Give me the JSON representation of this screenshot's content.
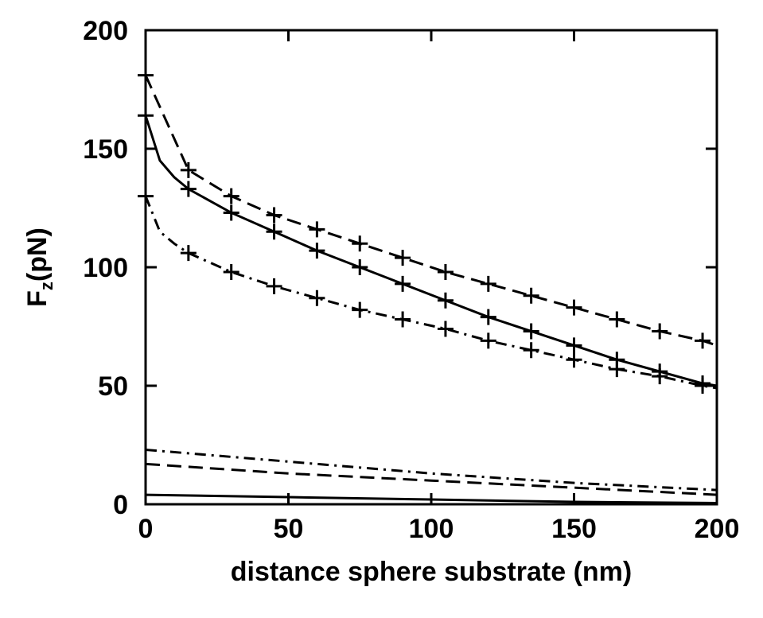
{
  "chart_data": {
    "type": "line",
    "xlabel": "distance sphere substrate (nm)",
    "ylabel": {
      "main": "F",
      "sub": "z",
      "rest": "(pN)"
    },
    "xlim": [
      0,
      200
    ],
    "ylim": [
      0,
      200
    ],
    "xticks": [
      0,
      50,
      100,
      150,
      200
    ],
    "yticks": [
      0,
      50,
      100,
      150,
      200
    ],
    "grid": false,
    "legend": "none",
    "series": [
      {
        "style": "dashed",
        "marker": "plus",
        "x": [
          0,
          15,
          30,
          45,
          60,
          75,
          90,
          105,
          120,
          135,
          150,
          165,
          180,
          195,
          200
        ],
        "y": [
          181,
          141,
          130,
          122,
          116,
          110,
          104,
          98,
          93,
          88,
          83,
          78,
          73,
          69,
          67
        ],
        "marker_x": [
          0,
          15,
          30,
          45,
          60,
          75,
          90,
          105,
          120,
          135,
          150,
          165,
          180,
          195
        ]
      },
      {
        "style": "solid",
        "marker": "plus",
        "x": [
          0,
          5,
          10,
          15,
          30,
          45,
          60,
          75,
          90,
          105,
          120,
          135,
          150,
          165,
          180,
          195,
          200
        ],
        "y": [
          164,
          145,
          138,
          133,
          123,
          115,
          107,
          100,
          93,
          86,
          79,
          73,
          67,
          61,
          56,
          51,
          50
        ],
        "marker_x": [
          0,
          15,
          30,
          45,
          60,
          75,
          90,
          105,
          120,
          135,
          150,
          165,
          180,
          195
        ]
      },
      {
        "style": "dashdot",
        "marker": "plus",
        "x": [
          0,
          5,
          10,
          15,
          30,
          45,
          60,
          75,
          90,
          105,
          120,
          135,
          150,
          165,
          180,
          195,
          200
        ],
        "y": [
          130,
          115,
          110,
          106,
          98,
          92,
          87,
          82,
          78,
          74,
          69,
          65,
          61,
          57,
          54,
          50,
          49
        ],
        "marker_x": [
          0,
          15,
          30,
          45,
          60,
          75,
          90,
          105,
          120,
          135,
          150,
          165,
          180,
          195
        ]
      },
      {
        "style": "dashdot",
        "marker": "none",
        "x": [
          0,
          50,
          100,
          150,
          200
        ],
        "y": [
          23,
          18,
          13,
          9,
          6
        ]
      },
      {
        "style": "dashed",
        "marker": "none",
        "x": [
          0,
          50,
          100,
          150,
          200
        ],
        "y": [
          17,
          13,
          10,
          7,
          4
        ]
      },
      {
        "style": "solid",
        "marker": "none",
        "x": [
          0,
          50,
          100,
          150,
          200
        ],
        "y": [
          4,
          3,
          2,
          1,
          0.5
        ]
      }
    ]
  }
}
